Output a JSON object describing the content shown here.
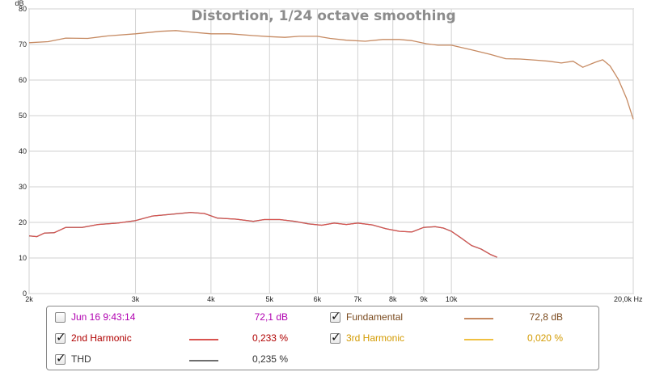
{
  "chart_data": {
    "type": "line",
    "title": "Distortion, 1/24 octave smoothing",
    "y_unit": "dB",
    "x_unit": "Hz",
    "x_scale": "log",
    "xlim": [
      2000,
      20000
    ],
    "ylim": [
      0,
      80
    ],
    "grid": true,
    "y_ticks": [
      0,
      10,
      20,
      30,
      40,
      50,
      60,
      70,
      80
    ],
    "x_ticks": [
      {
        "value": 2000,
        "label": "2k"
      },
      {
        "value": 3000,
        "label": "3k"
      },
      {
        "value": 4000,
        "label": "4k"
      },
      {
        "value": 5000,
        "label": "5k"
      },
      {
        "value": 6000,
        "label": "6k"
      },
      {
        "value": 7000,
        "label": "7k"
      },
      {
        "value": 8000,
        "label": "8k"
      },
      {
        "value": 9000,
        "label": "9k"
      },
      {
        "value": 10000,
        "label": "10k"
      },
      {
        "value": 20000,
        "label": "20,0k Hz"
      }
    ],
    "series": [
      {
        "name": "Fundamental",
        "color": "#c68a62",
        "points": [
          [
            2000,
            70.5
          ],
          [
            2150,
            70.8
          ],
          [
            2300,
            71.8
          ],
          [
            2500,
            71.7
          ],
          [
            2700,
            72.4
          ],
          [
            3000,
            73.0
          ],
          [
            3300,
            73.7
          ],
          [
            3500,
            73.9
          ],
          [
            3700,
            73.5
          ],
          [
            4000,
            73.0
          ],
          [
            4300,
            73.0
          ],
          [
            4700,
            72.5
          ],
          [
            5000,
            72.2
          ],
          [
            5300,
            72.0
          ],
          [
            5600,
            72.3
          ],
          [
            6000,
            72.3
          ],
          [
            6300,
            71.7
          ],
          [
            6700,
            71.2
          ],
          [
            7200,
            70.9
          ],
          [
            7700,
            71.4
          ],
          [
            8200,
            71.4
          ],
          [
            8600,
            71.1
          ],
          [
            9100,
            70.2
          ],
          [
            9500,
            69.8
          ],
          [
            10000,
            69.8
          ],
          [
            10800,
            68.5
          ],
          [
            11600,
            67.2
          ],
          [
            12300,
            66.0
          ],
          [
            13000,
            65.9
          ],
          [
            13800,
            65.6
          ],
          [
            14500,
            65.3
          ],
          [
            15200,
            64.8
          ],
          [
            15900,
            65.3
          ],
          [
            16500,
            63.6
          ],
          [
            17300,
            65.0
          ],
          [
            17800,
            65.7
          ],
          [
            18300,
            64.0
          ],
          [
            18900,
            60.2
          ],
          [
            19500,
            54.8
          ],
          [
            20000,
            49.0
          ]
        ]
      },
      {
        "name": "2nd Harmonic",
        "color": "#d9534f",
        "points": [
          [
            2000,
            16.2
          ],
          [
            2060,
            16.0
          ],
          [
            2120,
            17.0
          ],
          [
            2200,
            17.1
          ],
          [
            2300,
            18.6
          ],
          [
            2450,
            18.6
          ],
          [
            2600,
            19.4
          ],
          [
            2800,
            19.8
          ],
          [
            3000,
            20.5
          ],
          [
            3200,
            21.8
          ],
          [
            3400,
            22.2
          ],
          [
            3700,
            22.8
          ],
          [
            3900,
            22.5
          ],
          [
            4100,
            21.2
          ],
          [
            4400,
            20.9
          ],
          [
            4700,
            20.3
          ],
          [
            4900,
            20.8
          ],
          [
            5200,
            20.8
          ],
          [
            5500,
            20.3
          ],
          [
            5800,
            19.6
          ],
          [
            6100,
            19.2
          ],
          [
            6400,
            19.8
          ],
          [
            6700,
            19.4
          ],
          [
            7000,
            19.8
          ],
          [
            7400,
            19.3
          ],
          [
            7800,
            18.2
          ],
          [
            8200,
            17.5
          ],
          [
            8600,
            17.3
          ],
          [
            9000,
            18.6
          ],
          [
            9400,
            18.8
          ],
          [
            9700,
            18.4
          ],
          [
            10000,
            17.5
          ],
          [
            10400,
            15.5
          ],
          [
            10800,
            13.5
          ],
          [
            11200,
            12.5
          ],
          [
            11600,
            11.0
          ],
          [
            11900,
            10.2
          ]
        ]
      },
      {
        "name": "THD",
        "color": "#6e6e6e",
        "points": [
          [
            2000,
            16.2
          ],
          [
            2060,
            16.0
          ],
          [
            2120,
            17.0
          ],
          [
            2200,
            17.1
          ],
          [
            2300,
            18.6
          ],
          [
            2450,
            18.6
          ],
          [
            2600,
            19.4
          ],
          [
            2800,
            19.8
          ],
          [
            3000,
            20.5
          ],
          [
            3200,
            21.8
          ],
          [
            3400,
            22.2
          ],
          [
            3700,
            22.8
          ],
          [
            3900,
            22.5
          ],
          [
            4100,
            21.2
          ],
          [
            4400,
            20.9
          ],
          [
            4700,
            20.3
          ],
          [
            4900,
            20.8
          ],
          [
            5200,
            20.8
          ],
          [
            5500,
            20.3
          ],
          [
            5800,
            19.6
          ],
          [
            6100,
            19.2
          ],
          [
            6400,
            19.8
          ],
          [
            6700,
            19.4
          ],
          [
            7000,
            19.8
          ],
          [
            7400,
            19.3
          ],
          [
            7800,
            18.2
          ],
          [
            8200,
            17.5
          ],
          [
            8600,
            17.3
          ],
          [
            9000,
            18.6
          ],
          [
            9400,
            18.8
          ],
          [
            9700,
            18.4
          ],
          [
            10000,
            17.5
          ],
          [
            10400,
            15.5
          ],
          [
            10800,
            13.5
          ],
          [
            11200,
            12.5
          ],
          [
            11600,
            11.0
          ],
          [
            11900,
            10.2
          ]
        ]
      }
    ]
  },
  "legend": {
    "measurement": {
      "label": "Jun 16 9:43:14",
      "checked": false,
      "value": "72,1 dB",
      "label_color": "#b000b0",
      "value_color": "#b000b0"
    },
    "fundamental": {
      "label": "Fundamental",
      "checked": true,
      "value": "72,8 dB",
      "label_color": "#7a4a1e",
      "value_color": "#7a4a1e",
      "swatch_color": "#c68a62"
    },
    "second_harmonic": {
      "label": "2nd Harmonic",
      "checked": true,
      "value": "0,233 %",
      "label_color": "#b00000",
      "value_color": "#b00000",
      "swatch_color": "#d9534f"
    },
    "third_harmonic": {
      "label": "3rd Harmonic",
      "checked": true,
      "value": "0,020 %",
      "label_color": "#d39a00",
      "value_color": "#d39a00",
      "swatch_color": "#f0c040"
    },
    "thd": {
      "label": "THD",
      "checked": true,
      "value": "0,235 %",
      "label_color": "#333333",
      "value_color": "#333333",
      "swatch_color": "#6e6e6e"
    }
  }
}
